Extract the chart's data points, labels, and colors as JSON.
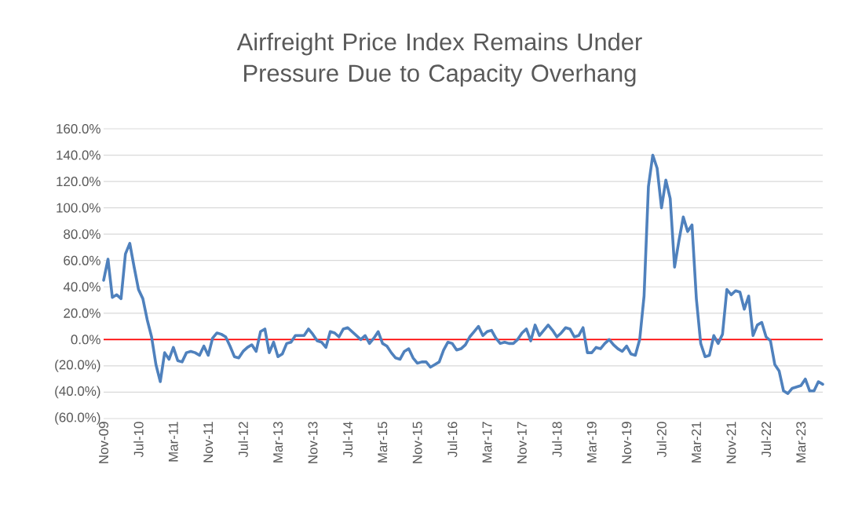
{
  "chart_data": {
    "type": "line",
    "title": "Airfreight Price Index Remains Under Pressure Due to Capacity Overhang",
    "x": [
      "2009-11",
      "2009-12",
      "2010-01",
      "2010-02",
      "2010-03",
      "2010-04",
      "2010-05",
      "2010-06",
      "2010-07",
      "2010-08",
      "2010-09",
      "2010-10",
      "2010-11",
      "2010-12",
      "2011-01",
      "2011-02",
      "2011-03",
      "2011-04",
      "2011-05",
      "2011-06",
      "2011-07",
      "2011-08",
      "2011-09",
      "2011-10",
      "2011-11",
      "2011-12",
      "2012-01",
      "2012-02",
      "2012-03",
      "2012-04",
      "2012-05",
      "2012-06",
      "2012-07",
      "2012-08",
      "2012-09",
      "2012-10",
      "2012-11",
      "2012-12",
      "2013-01",
      "2013-02",
      "2013-03",
      "2013-04",
      "2013-05",
      "2013-06",
      "2013-07",
      "2013-08",
      "2013-09",
      "2013-10",
      "2013-11",
      "2013-12",
      "2014-01",
      "2014-02",
      "2014-03",
      "2014-04",
      "2014-05",
      "2014-06",
      "2014-07",
      "2014-08",
      "2014-09",
      "2014-10",
      "2014-11",
      "2014-12",
      "2015-01",
      "2015-02",
      "2015-03",
      "2015-04",
      "2015-05",
      "2015-06",
      "2015-07",
      "2015-08",
      "2015-09",
      "2015-10",
      "2015-11",
      "2015-12",
      "2016-01",
      "2016-02",
      "2016-03",
      "2016-04",
      "2016-05",
      "2016-06",
      "2016-07",
      "2016-08",
      "2016-09",
      "2016-10",
      "2016-11",
      "2016-12",
      "2017-01",
      "2017-02",
      "2017-03",
      "2017-04",
      "2017-05",
      "2017-06",
      "2017-07",
      "2017-08",
      "2017-09",
      "2017-10",
      "2017-11",
      "2017-12",
      "2018-01",
      "2018-02",
      "2018-03",
      "2018-04",
      "2018-05",
      "2018-06",
      "2018-07",
      "2018-08",
      "2018-09",
      "2018-10",
      "2018-11",
      "2018-12",
      "2019-01",
      "2019-02",
      "2019-03",
      "2019-04",
      "2019-05",
      "2019-06",
      "2019-07",
      "2019-08",
      "2019-09",
      "2019-10",
      "2019-11",
      "2019-12",
      "2020-01",
      "2020-02",
      "2020-03",
      "2020-04",
      "2020-05",
      "2020-06",
      "2020-07",
      "2020-08",
      "2020-09",
      "2020-10",
      "2020-11",
      "2020-12",
      "2021-01",
      "2021-02",
      "2021-03",
      "2021-04",
      "2021-05",
      "2021-06",
      "2021-07",
      "2021-08",
      "2021-09",
      "2021-10",
      "2021-11",
      "2021-12",
      "2022-01",
      "2022-02",
      "2022-03",
      "2022-04",
      "2022-05",
      "2022-06",
      "2022-07",
      "2022-08",
      "2022-09",
      "2022-10",
      "2022-11",
      "2022-12",
      "2023-01",
      "2023-02",
      "2023-03",
      "2023-04",
      "2023-05",
      "2023-06",
      "2023-07",
      "2023-08"
    ],
    "series": [
      {
        "color": "#4f81bd",
        "values": [
          45,
          61,
          32,
          34,
          31,
          65,
          73,
          55,
          38,
          31,
          15,
          2,
          -19,
          -32,
          -10,
          -15,
          -6,
          -16,
          -17,
          -10,
          -9,
          -10,
          -12,
          -5,
          -12,
          1,
          5,
          4,
          2,
          -5,
          -13,
          -14,
          -9,
          -6,
          -4,
          -9,
          6,
          8,
          -10,
          -2,
          -13,
          -11,
          -3,
          -2,
          3,
          3,
          3,
          8,
          4,
          -1,
          -2,
          -6,
          6,
          5,
          2,
          8,
          9,
          6,
          3,
          0,
          3,
          -3,
          1,
          6,
          -3,
          -5,
          -10,
          -14,
          -15,
          -9,
          -7,
          -14,
          -18,
          -17,
          -17,
          -21,
          -19,
          -17,
          -8,
          -2,
          -3,
          -8,
          -7,
          -4,
          2,
          6,
          10,
          3,
          6,
          7,
          1,
          -3,
          -2,
          -3,
          -3,
          0,
          5,
          8,
          -1,
          11,
          3,
          7,
          11,
          7,
          2,
          5,
          9,
          8,
          2,
          3,
          9,
          -10,
          -10,
          -6,
          -7,
          -3,
          0,
          -4,
          -7,
          -9,
          -5,
          -11,
          -12,
          0,
          33,
          116,
          140,
          130,
          100,
          121,
          107,
          55,
          75,
          93,
          82,
          87,
          31,
          -3,
          -13,
          -12,
          3,
          -3,
          4,
          38,
          34,
          37,
          36,
          23,
          33,
          3,
          11,
          13,
          2,
          -1,
          -19,
          -24,
          -39,
          -41,
          -37,
          -36,
          -35,
          -30,
          -39,
          -39,
          -32,
          -34
        ]
      }
    ],
    "xlim": [
      "2009-11",
      "2023-08"
    ],
    "xticks": [
      {
        "value": "2009-11",
        "label": "Nov-09"
      },
      {
        "value": "2010-07",
        "label": "Jul-10"
      },
      {
        "value": "2011-03",
        "label": "Mar-11"
      },
      {
        "value": "2011-11",
        "label": "Nov-11"
      },
      {
        "value": "2012-07",
        "label": "Jul-12"
      },
      {
        "value": "2013-03",
        "label": "Mar-13"
      },
      {
        "value": "2013-11",
        "label": "Nov-13"
      },
      {
        "value": "2014-07",
        "label": "Jul-14"
      },
      {
        "value": "2015-03",
        "label": "Mar-15"
      },
      {
        "value": "2015-11",
        "label": "Nov-15"
      },
      {
        "value": "2016-07",
        "label": "Jul-16"
      },
      {
        "value": "2017-03",
        "label": "Mar-17"
      },
      {
        "value": "2017-11",
        "label": "Nov-17"
      },
      {
        "value": "2018-07",
        "label": "Jul-18"
      },
      {
        "value": "2019-03",
        "label": "Mar-19"
      },
      {
        "value": "2019-11",
        "label": "Nov-19"
      },
      {
        "value": "2020-07",
        "label": "Jul-20"
      },
      {
        "value": "2021-03",
        "label": "Mar-21"
      },
      {
        "value": "2021-11",
        "label": "Nov-21"
      },
      {
        "value": "2022-07",
        "label": "Jul-22"
      },
      {
        "value": "2023-03",
        "label": "Mar-23"
      }
    ],
    "ylim": [
      -60,
      160
    ],
    "yticks": [
      {
        "value": -60,
        "label": "(60.0%)"
      },
      {
        "value": -40,
        "label": "(40.0%)"
      },
      {
        "value": -20,
        "label": "(20.0%)"
      },
      {
        "value": 0,
        "label": "0.0%"
      },
      {
        "value": 20,
        "label": "20.0%"
      },
      {
        "value": 40,
        "label": "40.0%"
      },
      {
        "value": 60,
        "label": "60.0%"
      },
      {
        "value": 80,
        "label": "80.0%"
      },
      {
        "value": 100,
        "label": "100.0%"
      },
      {
        "value": 120,
        "label": "120.0%"
      },
      {
        "value": 140,
        "label": "140.0%"
      },
      {
        "value": 160,
        "label": "160.0%"
      }
    ],
    "grid": "y",
    "line_style": "solid",
    "ref_lines": [
      {
        "axis": "y",
        "value": 0,
        "color": "#ff0000"
      }
    ]
  }
}
